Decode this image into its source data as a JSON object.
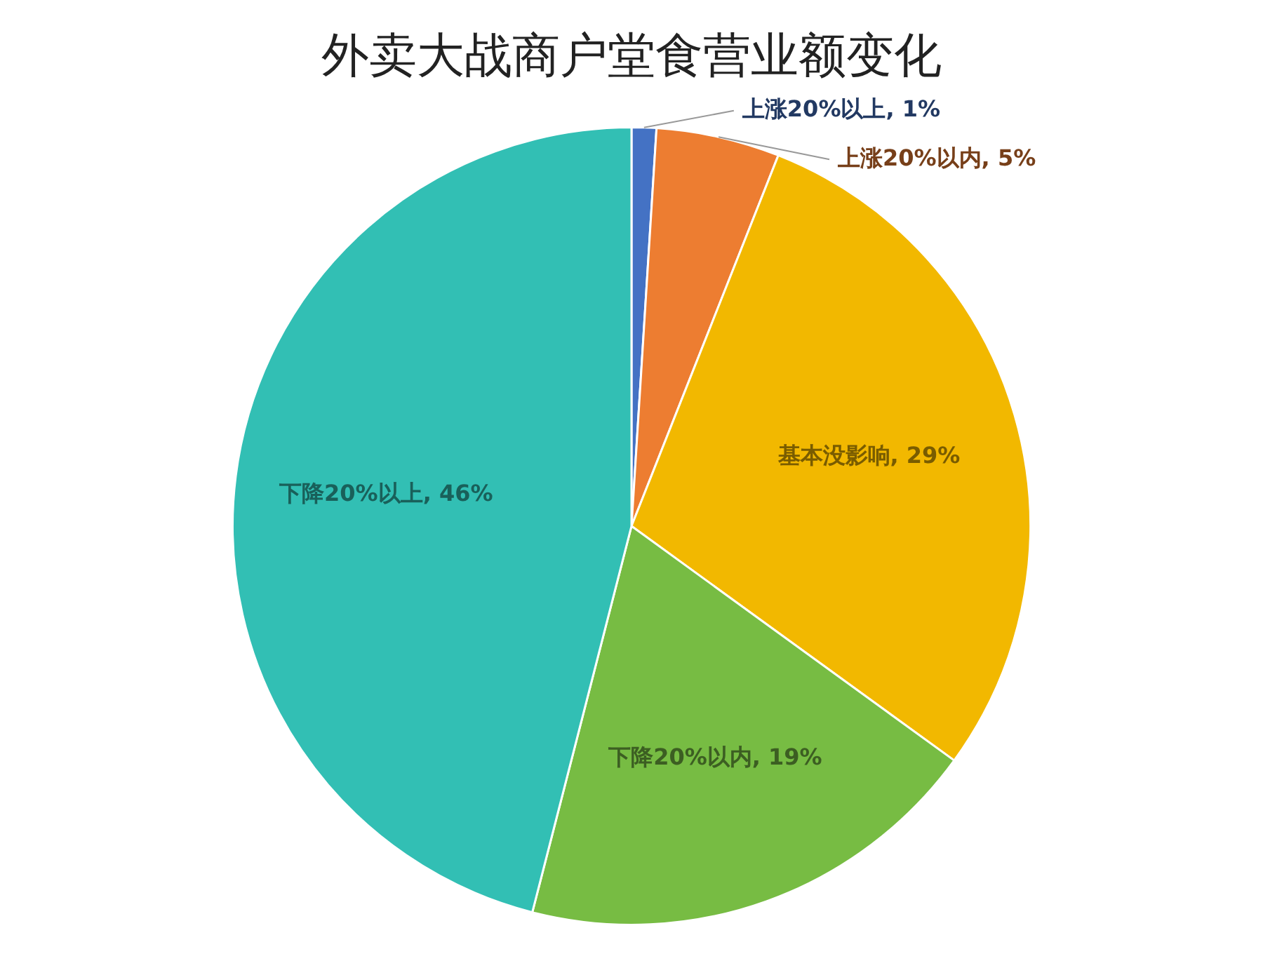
{
  "chart_data": {
    "type": "pie",
    "title": "外卖大战商户堂食营业额变化",
    "categories": [
      "上涨20%以上",
      "上涨20%以内",
      "基本没影响",
      "下降20%以内",
      "下降20%以上"
    ],
    "values": [
      1,
      5,
      29,
      19,
      46
    ],
    "value_labels": [
      "1%",
      "5%",
      "29%",
      "19%",
      "46%"
    ],
    "colors": [
      "#4472c4",
      "#ed7d31",
      "#f2b800",
      "#77bc43",
      "#32bfb4"
    ],
    "legend": false
  }
}
